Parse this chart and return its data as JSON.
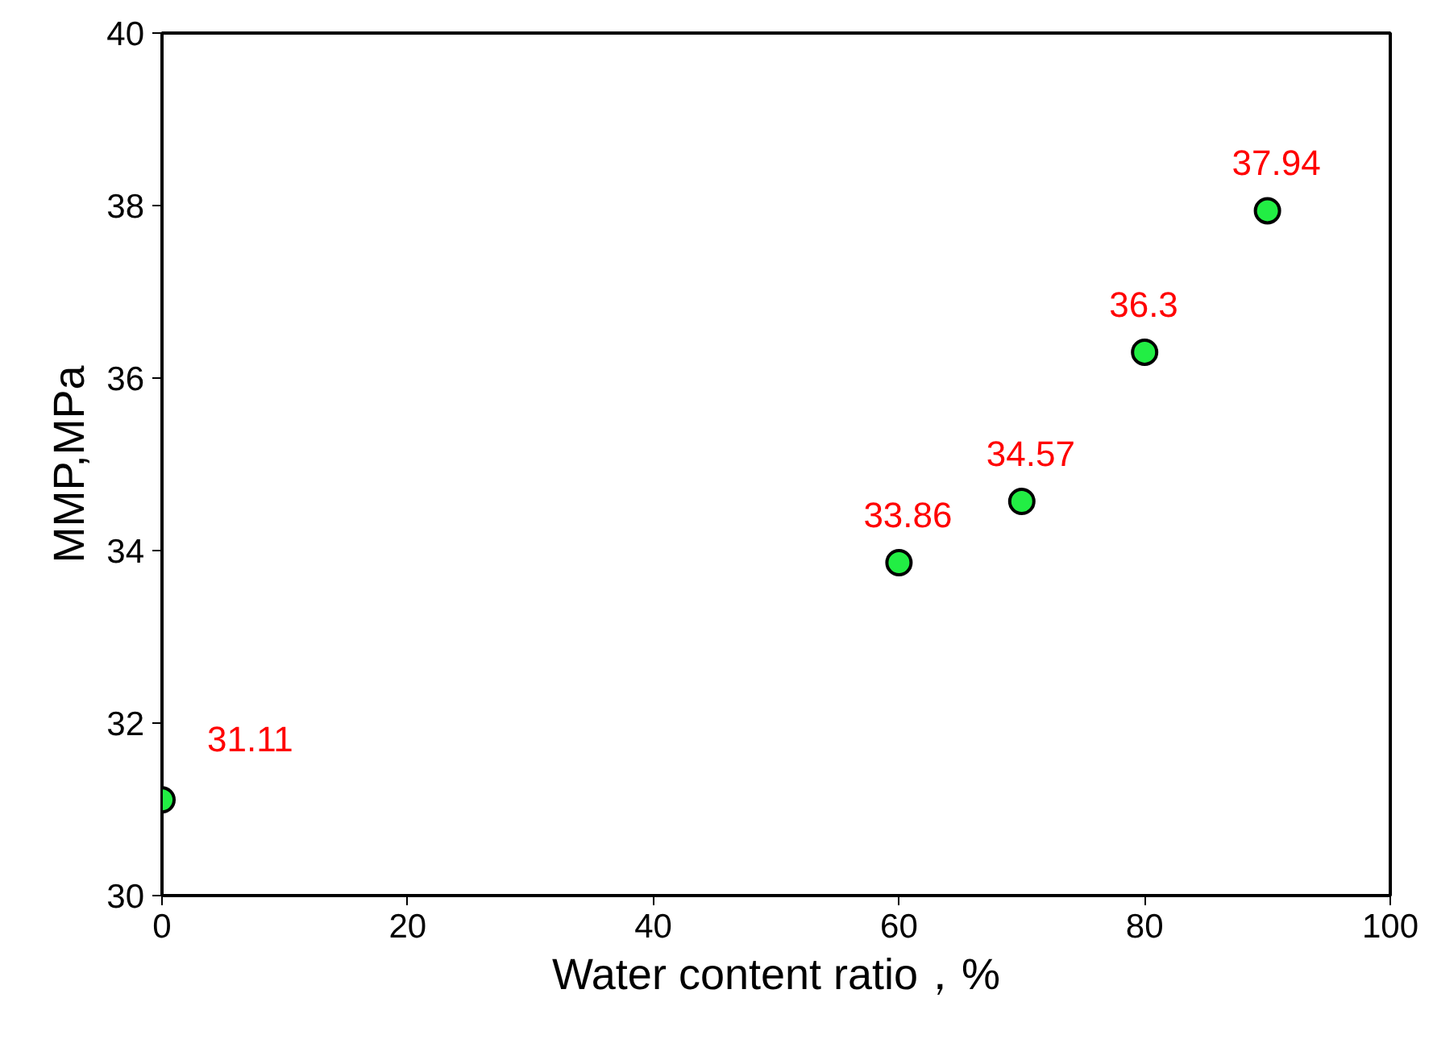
{
  "chart_data": {
    "type": "scatter",
    "xlabel": "Water content ratio，%",
    "ylabel": "MMP,MPa",
    "x": [
      0,
      60,
      70,
      80,
      90
    ],
    "series": [
      {
        "color": "#22ee44",
        "values": [
          31.11,
          33.86,
          34.57,
          36.3,
          37.94
        ]
      }
    ],
    "xlim": [
      0,
      100
    ],
    "xticks": [
      0,
      20,
      40,
      60,
      80,
      100
    ],
    "ylim": [
      30,
      40
    ],
    "yticks": [
      30,
      32,
      34,
      36,
      38,
      40
    ],
    "data_labels": true,
    "marker": "circle"
  }
}
